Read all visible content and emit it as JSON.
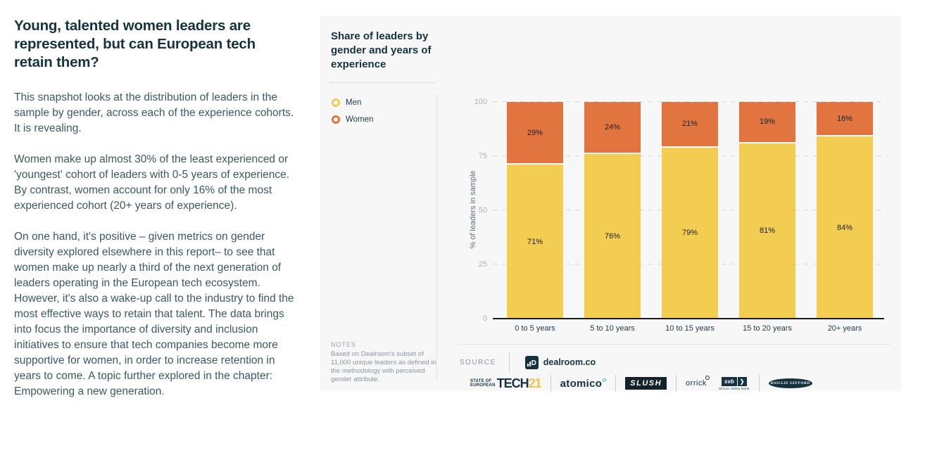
{
  "left_article": {
    "title": "Young, talented women leaders are represented, but can European tech retain them?",
    "paragraphs": [
      "This snapshot looks at the distribution of leaders in the sample by gender, across each of the experience cohorts. It is revealing.",
      "Women make up almost 30% of the least experienced or 'youngest' cohort of leaders with 0-5 years of experience. By contrast, women account for only 16% of the most experienced cohort (20+ years of experience).",
      "On one hand, it's positive – given metrics on gender diversity explored elsewhere in this report– to see that women make up nearly a third of the next generation of leaders operating in the European tech ecosystem. However, it's also a wake-up call to the industry to find the most effective ways to retain that talent. The data brings into focus the importance of diversity and inclusion initiatives to ensure that tech companies become more supportive for women, in order to increase retention in years to come. A topic further explored in the chapter: Empowering a new generation."
    ]
  },
  "panel": {
    "chart_title": "Share of leaders by gender and years of experience",
    "legend": [
      {
        "label": "Men",
        "color": "#F2CD52"
      },
      {
        "label": "Women",
        "color": "#E1743F"
      }
    ],
    "notes": {
      "heading": "NOTES",
      "body": "Based on Dealroom's subset of 11,000 unique leaders as defined in the methodology with perceived gender attribute."
    },
    "source": {
      "label": "SOURCE",
      "name": "dealroom.co",
      "icon_letter": "D"
    },
    "footer": {
      "sot_line1": "STATE OF",
      "sot_line2": "EUROPEAN",
      "sot_word": "TECH",
      "sot_year": "21",
      "atomico": "atomico",
      "slush": "SLUSH",
      "orrick": "orrick",
      "svb": "svb",
      "svb_arrow": "❯",
      "svb_sub": "Silicon Valley Bank",
      "baillie": "BAILLIE GIFFORD"
    }
  },
  "chart_data": {
    "type": "bar",
    "stacked": true,
    "percent_stacked": true,
    "categories": [
      "0 to 5 years",
      "5 to 10 years",
      "10 to 15 years",
      "15 to 20 years",
      "20+ years"
    ],
    "series": [
      {
        "name": "Men",
        "color": "#F2CD52",
        "values": [
          71,
          76,
          79,
          81,
          84
        ]
      },
      {
        "name": "Women",
        "color": "#E1743F",
        "values": [
          29,
          24,
          21,
          19,
          16
        ]
      }
    ],
    "ylabel": "% of leaders in sample",
    "xlabel": "",
    "yticks": [
      0,
      25,
      50,
      75,
      100
    ],
    "ylim": [
      0,
      100
    ],
    "grid": "dashed-horizontal",
    "legend_position": "left",
    "value_suffix": "%"
  }
}
